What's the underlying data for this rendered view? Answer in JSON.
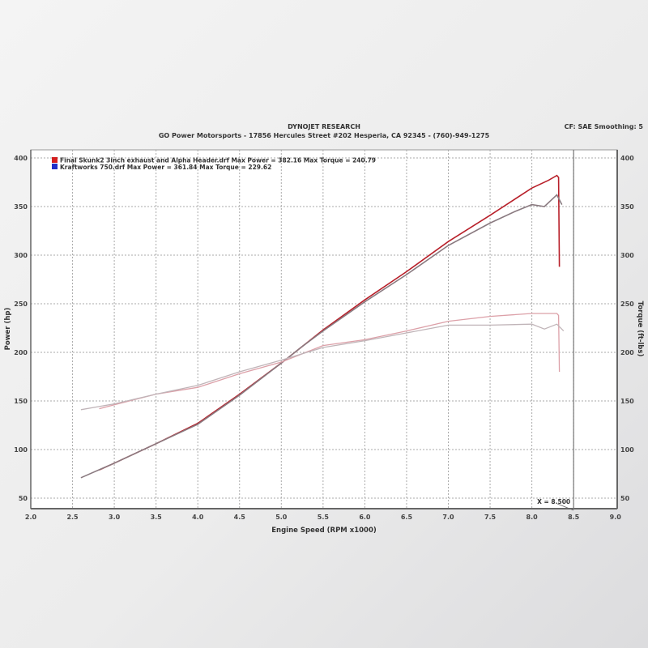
{
  "header": {
    "title": "DYNOJET RESEARCH",
    "subtitle": "GO Power Motorsports - 17856 Hercules Street #202 Hesperia, CA 92345 - (760)-949-1275",
    "settings": "CF: SAE  Smoothing: 5"
  },
  "chart_data": {
    "type": "line",
    "xlabel": "Engine Speed (RPM x1000)",
    "ylabel_left": "Power (hp)",
    "ylabel_right": "Torque (ft-lbs)",
    "xlim": [
      2.0,
      9.0
    ],
    "ylim": [
      40,
      410
    ],
    "x_ticks": [
      "2.0",
      "2.5",
      "3.0",
      "3.5",
      "4.0",
      "4.5",
      "5.0",
      "5.5",
      "6.0",
      "6.5",
      "7.0",
      "7.5",
      "8.0",
      "8.5",
      "9.0"
    ],
    "y_ticks": [
      "50",
      "100",
      "150",
      "200",
      "250",
      "300",
      "350",
      "400"
    ],
    "grid": true,
    "legend_position": "top-left",
    "cursor": {
      "x": 8.5,
      "label": "X = 8.500"
    },
    "legend": [
      {
        "label": "Final Skunk2 3inch exhaust and Alpha Header.drf Max Power = 382.16 Max Torque = 240.79",
        "color": "#d42020"
      },
      {
        "label": "Kraftworks 750.drf Max Power = 361.84 Max Torque = 229.62",
        "color": "#2030c8"
      }
    ],
    "series": [
      {
        "name": "Final Skunk2 3inch exhaust and Alpha Header.drf",
        "measure": "power",
        "color": "#b8202a",
        "x": [
          2.82,
          3.0,
          3.5,
          4.0,
          4.5,
          5.0,
          5.25,
          5.5,
          6.0,
          6.5,
          7.0,
          7.5,
          8.0,
          8.2,
          8.3,
          8.32,
          8.33
        ],
        "y": [
          79,
          86,
          106,
          127,
          157,
          189,
          206,
          223,
          254,
          283,
          314,
          341,
          369,
          377,
          382,
          380,
          288
        ]
      },
      {
        "name": "Kraftworks 750.drf",
        "measure": "power",
        "color": "#8a7a80",
        "x": [
          2.6,
          3.0,
          3.5,
          4.0,
          4.5,
          5.0,
          5.25,
          5.5,
          6.0,
          6.5,
          7.0,
          7.5,
          7.8,
          8.0,
          8.15,
          8.3,
          8.36
        ],
        "y": [
          71,
          86,
          106,
          126,
          156,
          189,
          206,
          222,
          252,
          280,
          310,
          333,
          345,
          352,
          350,
          362,
          352
        ]
      },
      {
        "name": "Final Skunk2 3inch exhaust and Alpha Header.drf",
        "measure": "torque",
        "color": "#dca0a8",
        "x": [
          2.82,
          3.0,
          3.5,
          4.0,
          4.5,
          5.0,
          5.5,
          6.0,
          6.5,
          7.0,
          7.5,
          8.0,
          8.3,
          8.32,
          8.33
        ],
        "y": [
          142,
          146,
          157,
          164,
          178,
          190,
          207,
          213,
          222,
          232,
          237,
          240,
          240,
          238,
          180
        ]
      },
      {
        "name": "Kraftworks 750.drf",
        "measure": "torque",
        "color": "#c0b4b8",
        "x": [
          2.6,
          3.0,
          3.5,
          4.0,
          4.5,
          5.0,
          5.5,
          6.0,
          6.5,
          7.0,
          7.5,
          8.0,
          8.15,
          8.3,
          8.38
        ],
        "y": [
          141,
          147,
          157,
          166,
          180,
          192,
          205,
          212,
          220,
          228,
          228,
          229,
          224,
          229,
          222
        ]
      }
    ]
  }
}
